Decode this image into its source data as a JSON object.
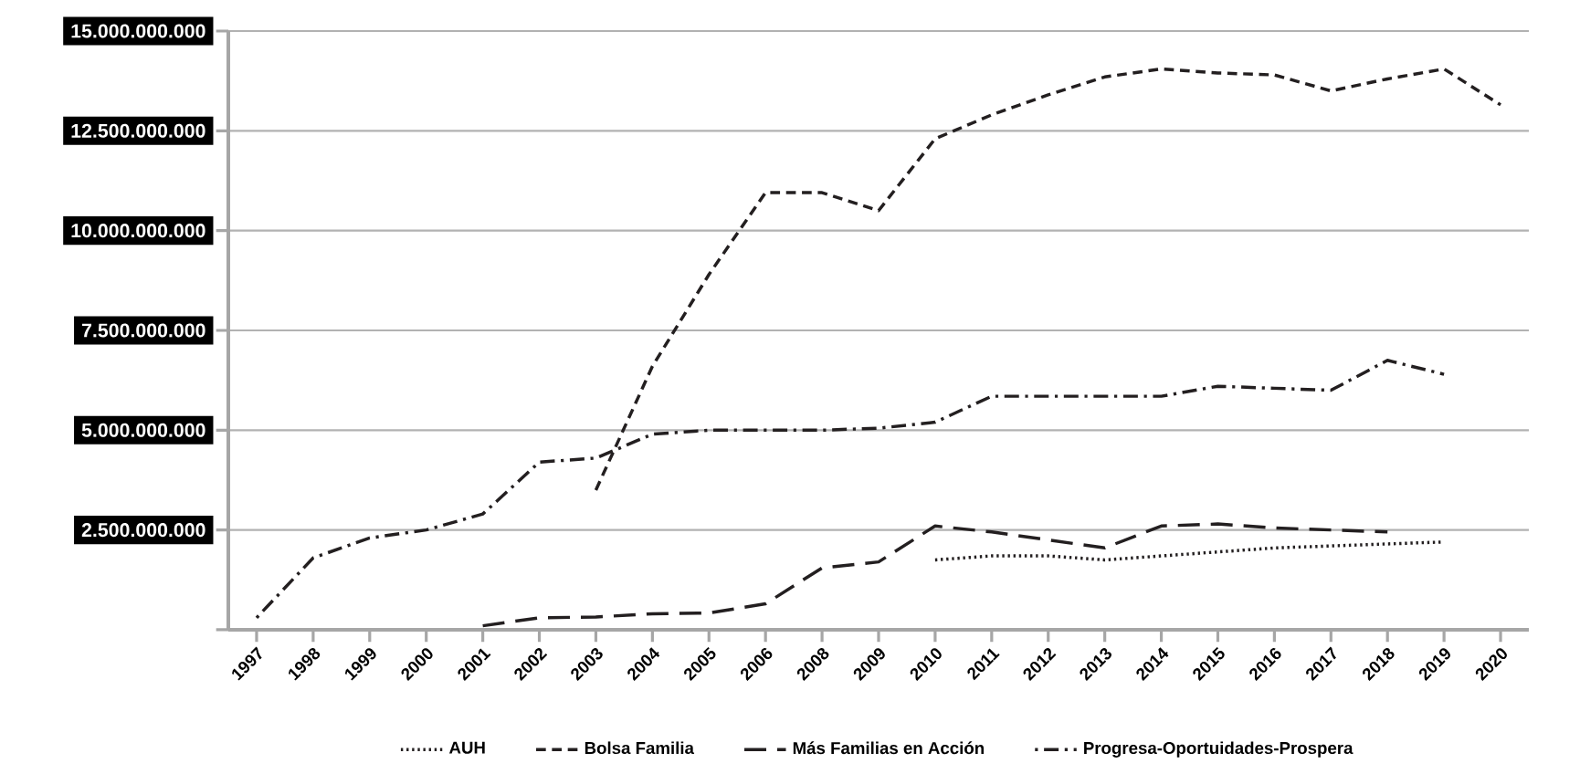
{
  "chart_data": {
    "type": "line",
    "categories": [
      "1997",
      "1998",
      "1999",
      "2000",
      "2001",
      "2002",
      "2003",
      "2004",
      "2005",
      "2006",
      "2008",
      "2009",
      "2010",
      "2011",
      "2012",
      "2013",
      "2014",
      "2015",
      "2016",
      "2017",
      "2018",
      "2019",
      "2020"
    ],
    "series": [
      {
        "name": "AUH",
        "color": "#231f20",
        "line_style": "dotted",
        "values": [
          null,
          null,
          null,
          null,
          null,
          null,
          null,
          null,
          null,
          null,
          null,
          null,
          1750000000,
          1850000000,
          1850000000,
          1750000000,
          1850000000,
          1950000000,
          2050000000,
          2100000000,
          2150000000,
          2200000000,
          null
        ]
      },
      {
        "name": "Bolsa Familia",
        "color": "#231f20",
        "line_style": "dashed",
        "values": [
          null,
          null,
          null,
          null,
          null,
          null,
          3500000000,
          6600000000,
          8900000000,
          10950000000,
          10950000000,
          10500000000,
          12300000000,
          12900000000,
          13400000000,
          13850000000,
          14050000000,
          13950000000,
          13900000000,
          13500000000,
          13800000000,
          14050000000,
          13150000000
        ]
      },
      {
        "name": "Más Familias en Acción",
        "color": "#231f20",
        "line_style": "long dashed",
        "values": [
          null,
          null,
          null,
          null,
          100000000,
          300000000,
          320000000,
          400000000,
          420000000,
          650000000,
          1550000000,
          1700000000,
          2600000000,
          2450000000,
          2250000000,
          2050000000,
          2600000000,
          2650000000,
          2550000000,
          2500000000,
          2450000000,
          null,
          null
        ]
      },
      {
        "name": "Progresa-Oportuidades-Prospera",
        "color": "#231f20",
        "line_style": "dash dot",
        "values": [
          300000000,
          1800000000,
          2300000000,
          2500000000,
          2900000000,
          4200000000,
          4300000000,
          4900000000,
          5000000000,
          5000000000,
          5000000000,
          5050000000,
          5200000000,
          5850000000,
          5850000000,
          5850000000,
          5850000000,
          6100000000,
          6050000000,
          6000000000,
          6750000000,
          6400000000,
          null
        ]
      }
    ],
    "ylim": [
      0,
      15000000000
    ],
    "yticks": [
      {
        "value": 0,
        "label": null
      },
      {
        "value": 2500000000,
        "label": "2.500.000.000"
      },
      {
        "value": 5000000000,
        "label": "5.000.000.000"
      },
      {
        "value": 7500000000,
        "label": "7.500.000.000"
      },
      {
        "value": 10000000000,
        "label": "10.000.000.000"
      },
      {
        "value": 12500000000,
        "label": "12.500.000.000"
      },
      {
        "value": 15000000000,
        "label": "15.000.000.000"
      }
    ],
    "grid": "y",
    "legend": "bottom",
    "marker": "none"
  }
}
